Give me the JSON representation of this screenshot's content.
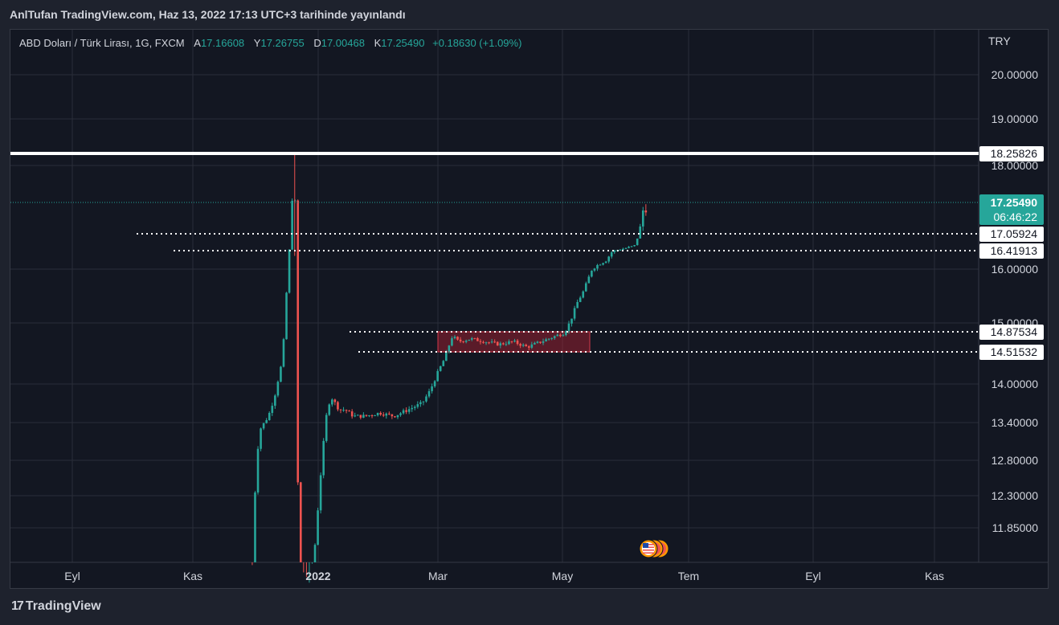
{
  "header": {
    "publish_line": "AnlTufan TradingView.com, Haz 13, 2022 17:13 UTC+3 tarihinde yayınlandı"
  },
  "legend": {
    "symbol": "ABD Doları / Türk Lirası, 1G, FXCM",
    "open_label": "A",
    "open": "17.16608",
    "high_label": "Y",
    "high": "17.26755",
    "low_label": "D",
    "low": "17.00468",
    "close_label": "K",
    "close": "17.25490",
    "change": "+0.18630 (+1.09%)"
  },
  "axis": {
    "currency": "TRY"
  },
  "footer": {
    "brand": "TradingView"
  },
  "colors": {
    "up": "#26a69a",
    "down": "#ef5350",
    "background": "#131722",
    "grid": "#2a2e39"
  },
  "chart_data": {
    "type": "candlestick",
    "y_ticks": [
      "20.00000",
      "19.00000",
      "18.00000",
      "16.00000",
      "15.00000",
      "14.00000",
      "13.40000",
      "12.80000",
      "12.30000",
      "11.85000"
    ],
    "x_ticks": [
      "Eyl",
      "Kas",
      "2022",
      "Mar",
      "May",
      "Tem",
      "Eyl",
      "Kas"
    ],
    "price_markers": [
      {
        "value": "18.25826",
        "style": "solid-white"
      },
      {
        "value": "17.05924",
        "style": "dotted-white"
      },
      {
        "value": "16.41913",
        "style": "dotted-white"
      },
      {
        "value": "14.87534",
        "style": "dotted-white"
      },
      {
        "value": "14.51532",
        "style": "dotted-white"
      }
    ],
    "last_price": {
      "value": "17.25490",
      "countdown": "06:46:22"
    },
    "highlight_zone": {
      "from": 14.51532,
      "to": 14.87534
    },
    "path": [
      [
        "2021-11-29",
        11.3
      ],
      [
        "2021-12-01",
        12.8
      ],
      [
        "2021-12-03",
        13.3
      ],
      [
        "2021-12-07",
        13.5
      ],
      [
        "2021-12-10",
        13.8
      ],
      [
        "2021-12-14",
        14.4
      ],
      [
        "2021-12-16",
        15.6
      ],
      [
        "2021-12-20",
        18.1
      ],
      [
        "2021-12-21",
        13.0
      ],
      [
        "2021-12-23",
        11.2
      ],
      [
        "2021-12-27",
        11.0
      ],
      [
        "2021-12-30",
        11.6
      ],
      [
        "2022-01-03",
        13.0
      ],
      [
        "2022-01-05",
        13.6
      ],
      [
        "2022-01-07",
        13.8
      ],
      [
        "2022-01-11",
        13.6
      ],
      [
        "2022-01-14",
        13.6
      ],
      [
        "2022-01-18",
        13.5
      ],
      [
        "2022-01-24",
        13.5
      ],
      [
        "2022-01-31",
        13.55
      ],
      [
        "2022-02-07",
        13.5
      ],
      [
        "2022-02-14",
        13.6
      ],
      [
        "2022-02-21",
        13.7
      ],
      [
        "2022-02-25",
        13.9
      ],
      [
        "2022-03-01",
        14.2
      ],
      [
        "2022-03-04",
        14.4
      ],
      [
        "2022-03-08",
        14.8
      ],
      [
        "2022-03-11",
        14.7
      ],
      [
        "2022-03-17",
        14.75
      ],
      [
        "2022-03-24",
        14.7
      ],
      [
        "2022-03-31",
        14.65
      ],
      [
        "2022-04-07",
        14.7
      ],
      [
        "2022-04-14",
        14.6
      ],
      [
        "2022-04-21",
        14.7
      ],
      [
        "2022-04-28",
        14.8
      ],
      [
        "2022-05-02",
        14.85
      ],
      [
        "2022-05-05",
        15.0
      ],
      [
        "2022-05-09",
        15.4
      ],
      [
        "2022-05-12",
        15.6
      ],
      [
        "2022-05-16",
        16.0
      ],
      [
        "2022-05-19",
        16.1
      ],
      [
        "2022-05-23",
        16.2
      ],
      [
        "2022-05-26",
        16.4
      ],
      [
        "2022-06-01",
        16.5
      ],
      [
        "2022-06-06",
        16.6
      ],
      [
        "2022-06-08",
        17.0
      ],
      [
        "2022-06-10",
        17.2
      ],
      [
        "2022-06-13",
        17.25
      ]
    ]
  }
}
